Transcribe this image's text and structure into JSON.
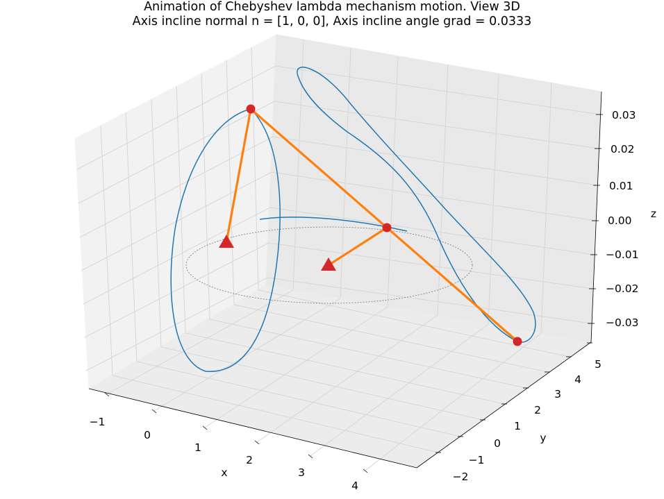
{
  "chart_data": {
    "type": "line",
    "title": "Animation of Chebyshev lambda mechanism motion. View 3D",
    "subtitle": "Axis incline normal n = [1, 0, 0], Axis incline angle grad = 0.0333",
    "xlabel": "x",
    "ylabel": "y",
    "zlabel": "z",
    "xlim": [
      -1.5,
      4.5
    ],
    "ylim": [
      -2.3,
      5.5
    ],
    "zlim": [
      -0.035,
      0.035
    ],
    "x_ticks": [
      "−1",
      "0",
      "1",
      "2",
      "3",
      "4"
    ],
    "y_ticks": [
      "−2",
      "−1",
      "0",
      "1",
      "2",
      "3",
      "4",
      "5"
    ],
    "z_ticks": [
      "−0.03",
      "−0.02",
      "−0.01",
      "0.00",
      "0.01",
      "0.02",
      "0.03"
    ],
    "grid": true,
    "colors": {
      "trajectory": "#1f77b4",
      "links": "#ff7f0e",
      "joints": "#d62728",
      "crank_circle": "#808080",
      "pane": "#f2f2f2",
      "grid": "#d9d9d9"
    }
  }
}
